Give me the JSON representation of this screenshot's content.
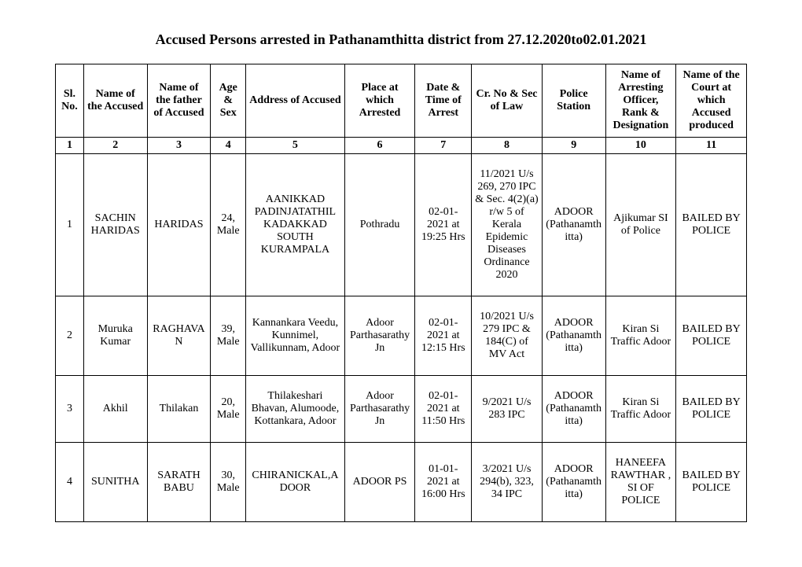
{
  "title": "Accused Persons arrested in  Pathanamthitta   district from  27.12.2020to02.01.2021",
  "table": {
    "columns": [
      "Sl. No.",
      "Name of the Accused",
      "Name of the father of Accused",
      "Age & Sex",
      "Address of Accused",
      "Place at which Arrested",
      "Date & Time of Arrest",
      "Cr. No & Sec of Law",
      "Police Station",
      "Name of Arresting Officer, Rank & Designation",
      "Name of the Court at which Accused produced"
    ],
    "column_numbers": [
      "1",
      "2",
      "3",
      "4",
      "5",
      "6",
      "7",
      "8",
      "9",
      "10",
      "11"
    ],
    "rows": [
      {
        "sl": "1",
        "accused": "SACHIN HARIDAS",
        "father": "HARIDAS",
        "age_sex": "24, Male",
        "address": "AANIKKAD PADINJATATHIL KADAKKAD SOUTH KURAMPALA",
        "place": "Pothradu",
        "datetime": "02-01-2021 at 19:25 Hrs",
        "cr": "11/2021 U/s 269, 270 IPC & Sec. 4(2)(a) r/w 5 of Kerala Epidemic Diseases Ordinance 2020",
        "station": "ADOOR (Pathanamthitta)",
        "officer": "Ajikumar SI of Police",
        "court": "BAILED BY POLICE"
      },
      {
        "sl": "2",
        "accused": "Muruka Kumar",
        "father": "RAGHAVAN",
        "age_sex": "39, Male",
        "address": "Kannankara Veedu, Kunnimel, Vallikunnam, Adoor",
        "place": "Adoor Parthasarathy Jn",
        "datetime": "02-01-2021 at 12:15 Hrs",
        "cr": "10/2021 U/s 279 IPC & 184(C) of MV Act",
        "station": "ADOOR (Pathanamthitta)",
        "officer": "Kiran Si Traffic Adoor",
        "court": "BAILED BY POLICE"
      },
      {
        "sl": "3",
        "accused": "Akhil",
        "father": "Thilakan",
        "age_sex": "20, Male",
        "address": "Thilakeshari Bhavan, Alumoode, Kottankara, Adoor",
        "place": "Adoor Parthasarathy Jn",
        "datetime": "02-01-2021 at 11:50 Hrs",
        "cr": "9/2021 U/s 283 IPC",
        "station": "ADOOR (Pathanamthitta)",
        "officer": "Kiran Si Traffic Adoor",
        "court": "BAILED BY POLICE"
      },
      {
        "sl": "4",
        "accused": "SUNITHA",
        "father": "SARATH BABU",
        "age_sex": "30, Male",
        "address": "CHIRANICKAL,ADOOR",
        "place": "ADOOR PS",
        "datetime": "01-01-2021 at 16:00 Hrs",
        "cr": "3/2021 U/s 294(b), 323, 34 IPC",
        "station": "ADOOR (Pathanamthitta)",
        "officer": "HANEEFA RAWTHAR , SI OF POLICE",
        "court": "BAILED BY POLICE"
      }
    ]
  }
}
